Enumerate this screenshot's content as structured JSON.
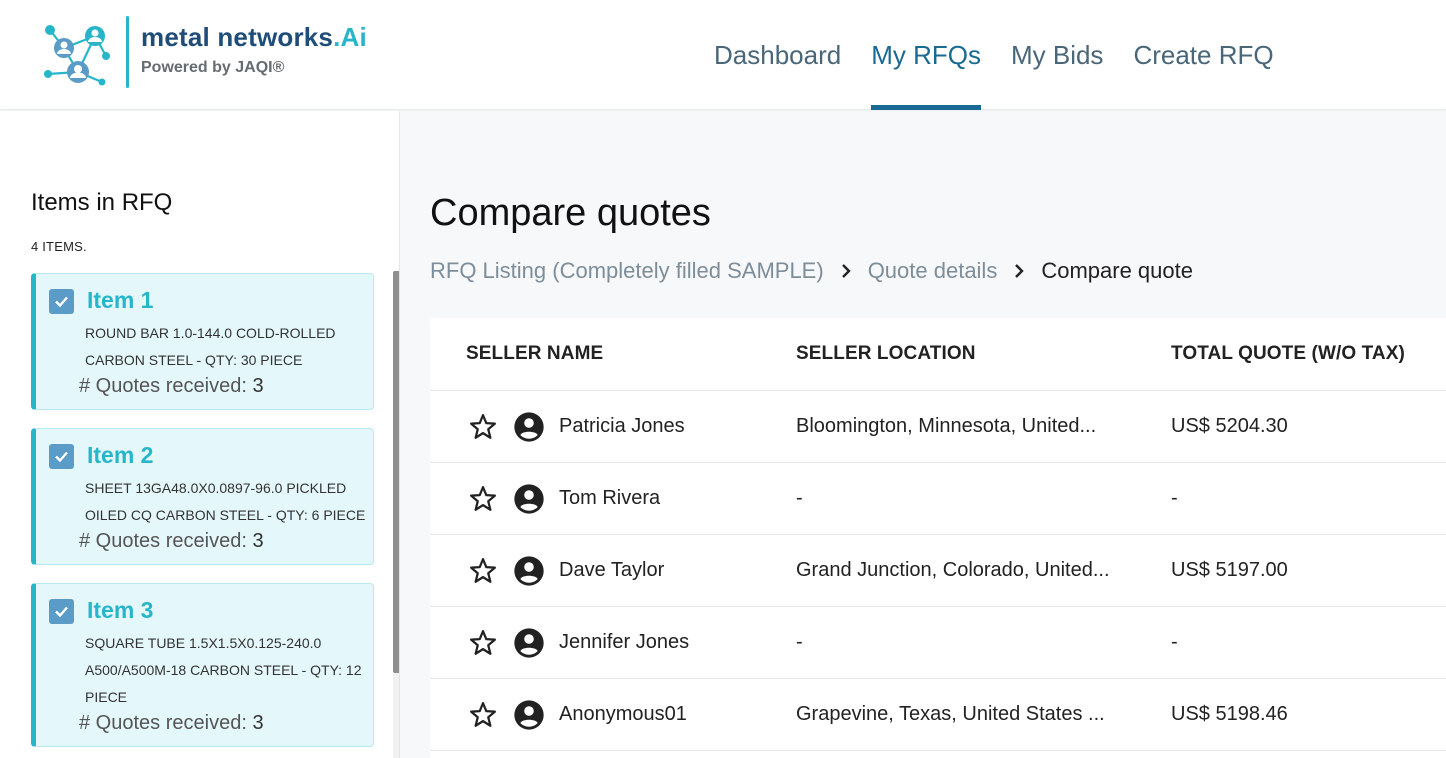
{
  "brand": {
    "name": "metal networks",
    "name_suffix": ".Ai",
    "tagline": "Powered by JAQI®",
    "colors": {
      "primary": "#1f4d78",
      "accent": "#27b6c9"
    }
  },
  "nav": {
    "items": [
      {
        "label": "Dashboard"
      },
      {
        "label": "My RFQs"
      },
      {
        "label": "My Bids"
      },
      {
        "label": "Create RFQ"
      }
    ],
    "active": "My RFQs"
  },
  "sidebar": {
    "title": "Items in RFQ",
    "count_label": "4 ITEMS.",
    "items": [
      {
        "title": "Item 1",
        "description": "ROUND BAR 1.0-144.0 COLD-ROLLED CARBON STEEL - QTY: 30 PIECE",
        "quotes_label": "# Quotes received:",
        "quotes_count": "3",
        "checked": true
      },
      {
        "title": "Item 2",
        "description": "SHEET 13GA48.0X0.0897-96.0 PICKLED OILED CQ CARBON STEEL - QTY: 6 PIECE",
        "quotes_label": "# Quotes received:",
        "quotes_count": "3",
        "checked": true
      },
      {
        "title": "Item 3",
        "description": "SQUARE TUBE 1.5X1.5X0.125-240.0 A500/A500M-18 CARBON STEEL - QTY: 12 PIECE",
        "quotes_label": "# Quotes received:",
        "quotes_count": "3",
        "checked": true
      }
    ]
  },
  "main": {
    "title": "Compare quotes",
    "breadcrumb": [
      {
        "label": "RFQ Listing (Completely filled SAMPLE)"
      },
      {
        "label": "Quote details"
      },
      {
        "label": "Compare quote"
      }
    ],
    "table": {
      "columns": [
        "SELLER NAME",
        "SELLER LOCATION",
        "TOTAL QUOTE (W/O TAX)"
      ],
      "rows": [
        {
          "seller": "Patricia Jones",
          "location": "Bloomington, Minnesota, United...",
          "total": "US$ 5204.30"
        },
        {
          "seller": "Tom Rivera",
          "location": "-",
          "total": "-"
        },
        {
          "seller": "Dave Taylor",
          "location": "Grand Junction, Colorado, United...",
          "total": "US$ 5197.00"
        },
        {
          "seller": "Jennifer Jones",
          "location": "-",
          "total": "-"
        },
        {
          "seller": "Anonymous01",
          "location": "Grapevine, Texas, United States ...",
          "total": "US$ 5198.46"
        }
      ]
    }
  },
  "icons": {
    "star": "star-outline-icon",
    "avatar": "account-circle-icon",
    "check": "checkbox-checked-icon",
    "breadcrumb_sep": "chevron-right-icon",
    "logo": "network-people-logo"
  }
}
